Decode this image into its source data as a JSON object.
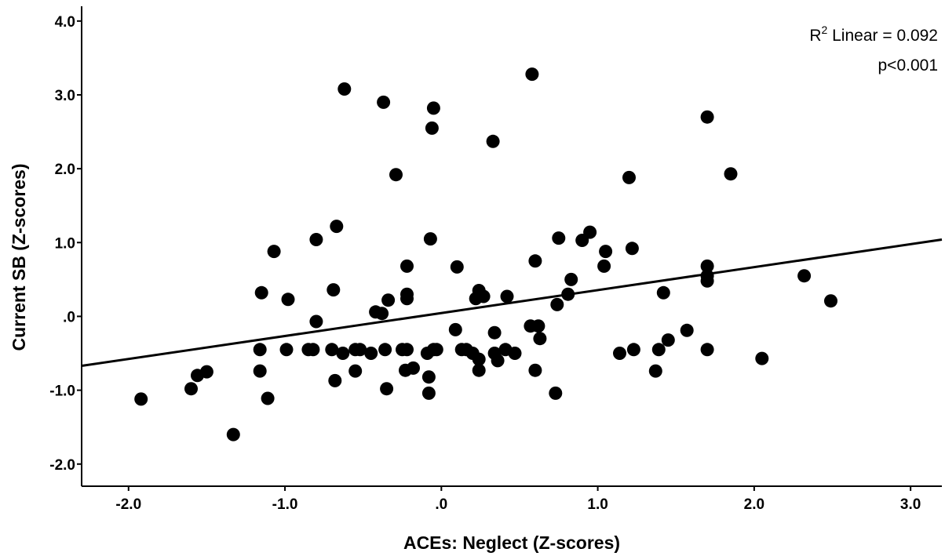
{
  "chart_data": {
    "type": "scatter",
    "title": "",
    "xlabel": "ACEs: Neglect (Z-scores)",
    "ylabel": "Current SB (Z-scores)",
    "xlim": [
      -2.3,
      3.2
    ],
    "ylim": [
      -2.3,
      4.2
    ],
    "x_ticks": [
      {
        "value": -2.0,
        "label": "-2.0"
      },
      {
        "value": -1.0,
        "label": "-1.0"
      },
      {
        "value": 0.0,
        "label": ".0"
      },
      {
        "value": 1.0,
        "label": "1.0"
      },
      {
        "value": 2.0,
        "label": "2.0"
      },
      {
        "value": 3.0,
        "label": "3.0"
      }
    ],
    "y_ticks": [
      {
        "value": -2.0,
        "label": "-2.0"
      },
      {
        "value": -1.0,
        "label": "-1.0"
      },
      {
        "value": 0.0,
        "label": ".0"
      },
      {
        "value": 1.0,
        "label": "1.0"
      },
      {
        "value": 2.0,
        "label": "2.0"
      },
      {
        "value": 3.0,
        "label": "3.0"
      },
      {
        "value": 4.0,
        "label": "4.0"
      }
    ],
    "fit_line": {
      "x": [
        -2.3,
        3.2
      ],
      "y": [
        -0.67,
        1.04
      ]
    },
    "annotations": {
      "r2_prefix": "R",
      "r2_sup": "2",
      "r2_rest": " Linear = 0.092",
      "p_value": "p<0.001"
    },
    "grid": false,
    "marker_color": "#000000",
    "points": [
      [
        -0.62,
        3.08
      ],
      [
        -0.37,
        2.9
      ],
      [
        -0.05,
        2.82
      ],
      [
        -0.06,
        2.55
      ],
      [
        0.58,
        3.28
      ],
      [
        0.33,
        2.37
      ],
      [
        1.7,
        2.7
      ],
      [
        -0.29,
        1.92
      ],
      [
        1.2,
        1.88
      ],
      [
        1.85,
        1.93
      ],
      [
        -0.67,
        1.22
      ],
      [
        -1.07,
        0.88
      ],
      [
        -0.8,
        1.04
      ],
      [
        -0.07,
        1.05
      ],
      [
        0.75,
        1.06
      ],
      [
        0.95,
        1.14
      ],
      [
        0.9,
        1.03
      ],
      [
        1.05,
        0.88
      ],
      [
        1.22,
        0.92
      ],
      [
        0.6,
        0.75
      ],
      [
        -0.22,
        0.68
      ],
      [
        0.1,
        0.67
      ],
      [
        1.04,
        0.68
      ],
      [
        1.7,
        0.68
      ],
      [
        1.7,
        0.55
      ],
      [
        1.7,
        0.48
      ],
      [
        0.83,
        0.5
      ],
      [
        2.32,
        0.55
      ],
      [
        -1.15,
        0.32
      ],
      [
        -0.98,
        0.23
      ],
      [
        -0.69,
        0.36
      ],
      [
        -0.34,
        0.22
      ],
      [
        -0.22,
        0.3
      ],
      [
        -0.22,
        0.24
      ],
      [
        0.22,
        0.24
      ],
      [
        0.24,
        0.35
      ],
      [
        0.27,
        0.27
      ],
      [
        0.42,
        0.27
      ],
      [
        0.81,
        0.3
      ],
      [
        1.42,
        0.32
      ],
      [
        2.49,
        0.21
      ],
      [
        0.74,
        0.16
      ],
      [
        -0.42,
        0.06
      ],
      [
        -0.38,
        0.04
      ],
      [
        -0.8,
        -0.07
      ],
      [
        0.09,
        -0.18
      ],
      [
        0.57,
        -0.13
      ],
      [
        0.62,
        -0.13
      ],
      [
        0.34,
        -0.22
      ],
      [
        0.63,
        -0.3
      ],
      [
        1.45,
        -0.32
      ],
      [
        1.57,
        -0.19
      ],
      [
        -1.16,
        -0.45
      ],
      [
        -1.16,
        -0.74
      ],
      [
        -0.99,
        -0.45
      ],
      [
        -0.85,
        -0.45
      ],
      [
        -0.82,
        -0.45
      ],
      [
        -0.7,
        -0.45
      ],
      [
        -0.63,
        -0.5
      ],
      [
        -0.55,
        -0.45
      ],
      [
        -0.52,
        -0.45
      ],
      [
        -0.45,
        -0.5
      ],
      [
        -0.36,
        -0.45
      ],
      [
        -0.25,
        -0.45
      ],
      [
        -0.22,
        -0.45
      ],
      [
        -0.09,
        -0.5
      ],
      [
        -0.05,
        -0.45
      ],
      [
        -0.03,
        -0.45
      ],
      [
        0.13,
        -0.45
      ],
      [
        0.16,
        -0.45
      ],
      [
        0.2,
        -0.5
      ],
      [
        0.24,
        -0.58
      ],
      [
        0.34,
        -0.5
      ],
      [
        0.36,
        -0.6
      ],
      [
        0.41,
        -0.45
      ],
      [
        0.47,
        -0.5
      ],
      [
        1.14,
        -0.5
      ],
      [
        1.23,
        -0.45
      ],
      [
        1.39,
        -0.45
      ],
      [
        1.7,
        -0.45
      ],
      [
        2.05,
        -0.57
      ],
      [
        -0.23,
        -0.73
      ],
      [
        -0.18,
        -0.7
      ],
      [
        -0.08,
        -0.82
      ],
      [
        -0.55,
        -0.74
      ],
      [
        0.24,
        -0.73
      ],
      [
        0.6,
        -0.73
      ],
      [
        1.37,
        -0.74
      ],
      [
        -0.68,
        -0.87
      ],
      [
        -0.35,
        -0.98
      ],
      [
        -0.08,
        -1.04
      ],
      [
        0.73,
        -1.04
      ],
      [
        -1.6,
        -0.98
      ],
      [
        -1.56,
        -0.8
      ],
      [
        -1.5,
        -0.75
      ],
      [
        -1.11,
        -1.11
      ],
      [
        -1.92,
        -1.12
      ],
      [
        -1.33,
        -1.6
      ]
    ]
  }
}
